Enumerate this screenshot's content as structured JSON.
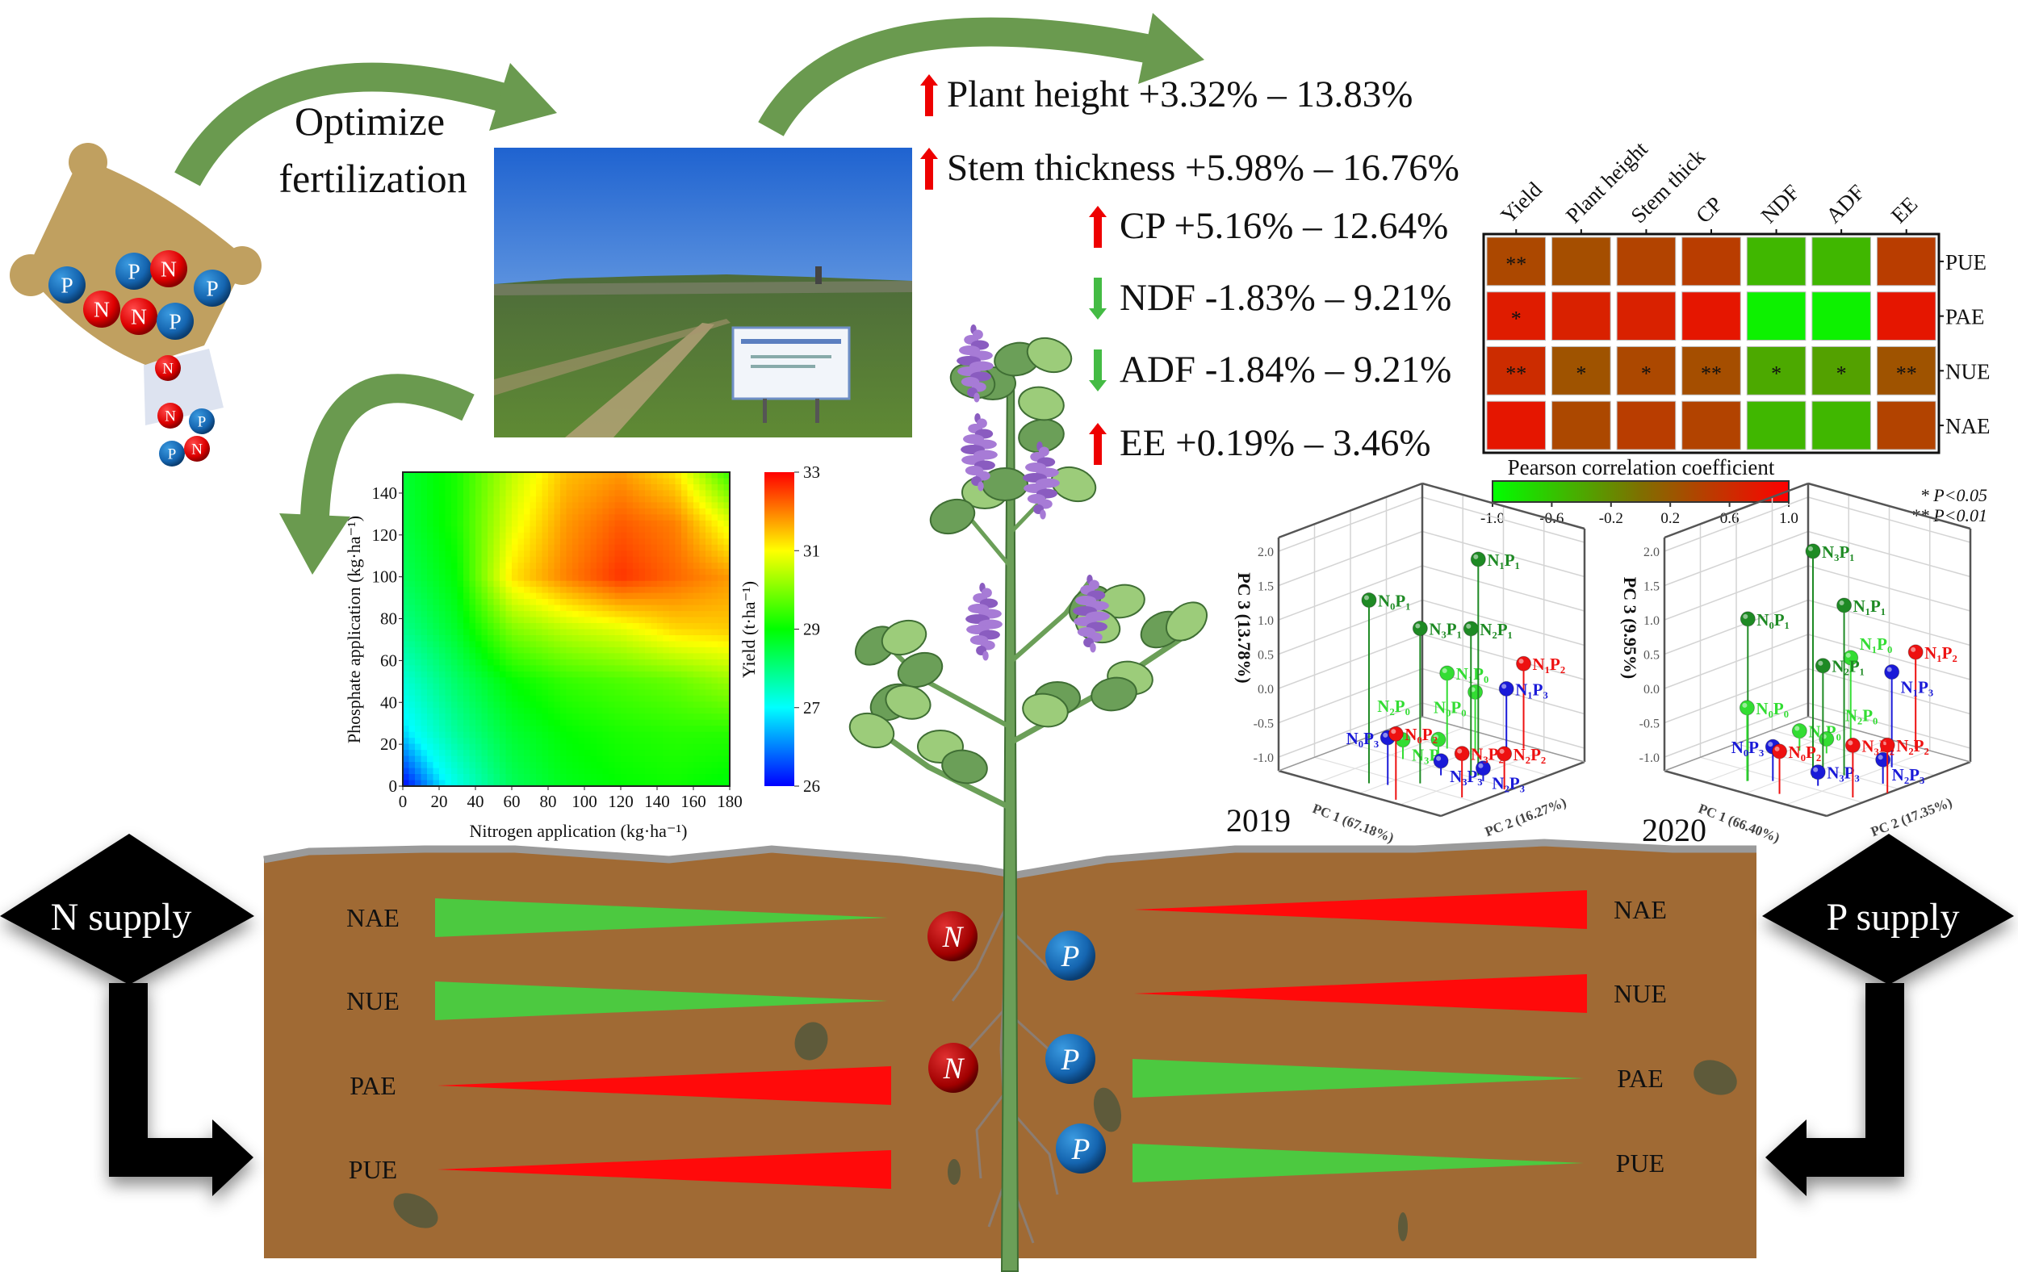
{
  "fertilizer": {
    "title_line1": "Optimize",
    "title_line2": "fertilization",
    "bag_balls": [
      "P",
      "P",
      "N",
      "P",
      "N",
      "N",
      "P"
    ],
    "falling_balls": [
      "N",
      "N",
      "P",
      "P",
      "N"
    ]
  },
  "effects": [
    {
      "trend": "up",
      "label": "Plant height +3.32% – 13.83%"
    },
    {
      "trend": "up",
      "label": "Stem thickness +5.98% – 16.76%"
    },
    {
      "trend": "up",
      "label": "CP +5.16% – 12.64%"
    },
    {
      "trend": "down",
      "label": "NDF -1.83% – 9.21%"
    },
    {
      "trend": "down",
      "label": "ADF -1.84% – 9.21%"
    },
    {
      "trend": "up",
      "label": "EE +0.19% – 3.46%"
    }
  ],
  "colors": {
    "up": "#ee0000",
    "down": "#44bb44",
    "increase_wedge": "#ff0a0a",
    "decrease_wedge": "#4cc940",
    "soil": "#a06a34",
    "arrow_green": "#6a9a4f"
  },
  "soil": {
    "n_supply_label": "N supply",
    "p_supply_label": "P supply",
    "root_balls": [
      "N",
      "P",
      "N",
      "P",
      "P"
    ],
    "n_side": [
      {
        "label": "NAE",
        "trend": "decrease"
      },
      {
        "label": "NUE",
        "trend": "decrease"
      },
      {
        "label": "PAE",
        "trend": "increase"
      },
      {
        "label": "PUE",
        "trend": "increase"
      }
    ],
    "p_side": [
      {
        "label": "NAE",
        "trend": "increase"
      },
      {
        "label": "NUE",
        "trend": "increase"
      },
      {
        "label": "PAE",
        "trend": "decrease"
      },
      {
        "label": "PUE",
        "trend": "decrease"
      }
    ]
  },
  "chart_data": [
    {
      "type": "heatmap",
      "subtype": "contour",
      "xlabel": "Nitrogen application (kg·ha⁻¹)",
      "ylabel": "Phosphate application (kg·ha⁻¹)",
      "colorbar_label": "Yield (t·ha⁻¹)",
      "xlim": [
        0,
        180
      ],
      "ylim": [
        0,
        150
      ],
      "xticks": [
        "0",
        "20",
        "40",
        "60",
        "80",
        "100",
        "120",
        "140",
        "160",
        "180"
      ],
      "yticks": [
        "0",
        "20",
        "40",
        "60",
        "80",
        "100",
        "120",
        "140"
      ],
      "colorbar_ticks": [
        "26",
        "27",
        "29",
        "31",
        "33"
      ],
      "x": [
        0,
        30,
        60,
        90,
        120,
        150,
        180
      ],
      "y": [
        0,
        25,
        50,
        75,
        100,
        125,
        150
      ],
      "z": [
        [
          26.0,
          27.2,
          28.3,
          28.8,
          29.0,
          29.1,
          28.9
        ],
        [
          26.8,
          27.8,
          28.6,
          29.0,
          29.2,
          29.3,
          29.3
        ],
        [
          27.3,
          28.2,
          29.0,
          29.4,
          29.6,
          29.8,
          30.2
        ],
        [
          27.9,
          28.7,
          30.0,
          30.5,
          30.8,
          31.3,
          31.4
        ],
        [
          28.3,
          29.0,
          31.2,
          32.0,
          32.6,
          32.2,
          31.8
        ],
        [
          28.5,
          29.2,
          30.8,
          31.8,
          32.3,
          32.0,
          30.8
        ],
        [
          28.6,
          29.2,
          30.5,
          31.5,
          31.8,
          31.2,
          29.4
        ]
      ]
    },
    {
      "type": "heatmap",
      "subtype": "correlation",
      "title": "Pearson correlation coefficient",
      "columns": [
        "Yield",
        "Plant height",
        "Stem thick",
        "CP",
        "NDF",
        "ADF",
        "EE"
      ],
      "rows": [
        "PUE",
        "PAE",
        "NUE",
        "NAE"
      ],
      "values": [
        [
          0.35,
          0.3,
          0.4,
          0.45,
          -0.5,
          -0.5,
          0.45
        ],
        [
          0.75,
          0.7,
          0.7,
          0.8,
          -0.9,
          -0.9,
          0.8
        ],
        [
          0.6,
          0.25,
          0.35,
          0.3,
          -0.4,
          -0.35,
          0.25
        ],
        [
          0.8,
          0.35,
          0.45,
          0.4,
          -0.5,
          -0.5,
          0.4
        ]
      ],
      "significance": [
        [
          "**",
          "",
          "",
          "",
          "",
          "",
          ""
        ],
        [
          "*",
          "",
          "",
          "",
          "",
          "",
          ""
        ],
        [
          "**",
          "*",
          "*",
          "**",
          "*",
          "*",
          "**"
        ],
        [
          "",
          "",
          "",
          "",
          "",
          "",
          ""
        ]
      ],
      "colorbar_ticks": [
        "-1.0",
        "-0.6",
        "-0.2",
        "0.2",
        "0.6",
        "1.0"
      ],
      "colorbar_range": [
        -1,
        1
      ],
      "legend": [
        "* P<0.05",
        "** P<0.01"
      ]
    },
    {
      "type": "scatter",
      "subtype": "3d-pca",
      "year_label": "2019",
      "xlabel": "PC 1 (67.18%)",
      "ylabel": "PC 2 (16.27%)",
      "zlabel": "PC 3 (13.78%)",
      "zticks": [
        "2.0",
        "1.5",
        "1.0",
        "0.5",
        "0.0",
        "-0.5",
        "-1.0"
      ],
      "zlim": [
        -1.2,
        2.2
      ],
      "group_colors": {
        "P0": "#33dd33",
        "P1": "#1e8a24",
        "P2": "#ee1111",
        "P3": "#1a1ad8"
      },
      "points": [
        {
          "label": "N₁P₁",
          "group": "P1",
          "pc1": 1.0,
          "pc2": -0.17,
          "pc3": 1.95
        },
        {
          "label": "N₀P₁",
          "group": "P1",
          "pc1": -0.25,
          "pc2": 1.46,
          "pc3": 1.47
        },
        {
          "label": "N₃P₁",
          "group": "P1",
          "pc1": 0.48,
          "pc2": 0.86,
          "pc3": 1.06
        },
        {
          "label": "N₂P₁",
          "group": "P1",
          "pc1": 0.9,
          "pc2": -0.08,
          "pc3": 0.94
        },
        {
          "label": "N₁P₀",
          "group": "P0",
          "pc1": -0.45,
          "pc2": -0.94,
          "pc3": -0.1
        },
        {
          "label": "N₀P₀",
          "group": "P0",
          "pc1": 0.04,
          "pc2": -1.17,
          "pc3": -0.34
        },
        {
          "label": "N₁P₂",
          "group": "P2",
          "pc1": 0.64,
          "pc2": -1.84,
          "pc3": 0.04
        },
        {
          "label": "N₁P₃",
          "group": "P3",
          "pc1": 0.8,
          "pc2": -1.18,
          "pc3": -0.17
        },
        {
          "label": "N₀P₂",
          "group": "P2",
          "pc1": 0.75,
          "pc2": 1.84,
          "pc3": -0.24
        },
        {
          "label": "N₀P₃",
          "group": "P3",
          "pc1": 0.08,
          "pc2": 1.31,
          "pc3": -0.51
        },
        {
          "label": "N₃P₀",
          "group": "P0",
          "pc1": -0.68,
          "pc2": 0.03,
          "pc3": -0.92
        },
        {
          "label": "N₂P₀",
          "group": "P0",
          "pc1": -0.4,
          "pc2": -0.64,
          "pc3": -1.0
        },
        {
          "label": "N₃P₃",
          "group": "P3",
          "pc1": 0.47,
          "pc2": 0.27,
          "pc3": -0.99
        },
        {
          "label": "N₃P₂",
          "group": "P2",
          "pc1": 1.6,
          "pc2": 0.96,
          "pc3": -0.56
        },
        {
          "label": "N₂P₂",
          "group": "P2",
          "pc1": 1.9,
          "pc2": 0.12,
          "pc3": -0.68
        },
        {
          "label": "N₂P₃",
          "group": "P3",
          "pc1": 1.29,
          "pc2": 0.02,
          "pc3": -1.01
        }
      ]
    },
    {
      "type": "scatter",
      "subtype": "3d-pca",
      "year_label": "2020",
      "xlabel": "PC 1 (66.40%)",
      "ylabel": "PC 2 (17.35%)",
      "zlabel": "PC 3 (9.95%)",
      "zticks": [
        "2.0",
        "1.5",
        "1.0",
        "0.5",
        "0.0",
        "-0.5",
        "-1.0"
      ],
      "zlim": [
        -1.2,
        2.2
      ],
      "group_colors": {
        "P0": "#33dd33",
        "P1": "#1e8a24",
        "P2": "#ee1111",
        "P3": "#1a1ad8"
      },
      "points": [
        {
          "label": "N₃P₁",
          "group": "P1",
          "pc1": 0.36,
          "pc2": 0.53,
          "pc3": 2.1
        },
        {
          "label": "N₁P₁",
          "group": "P1",
          "pc1": 0.72,
          "pc2": 0.07,
          "pc3": 1.28
        },
        {
          "label": "N₀P₁",
          "group": "P1",
          "pc1": -0.44,
          "pc2": 1.44,
          "pc3": 1.16
        },
        {
          "label": "N₂P₁",
          "group": "P1",
          "pc1": 0.42,
          "pc2": 0.32,
          "pc3": 0.4
        },
        {
          "label": "N₁P₀",
          "group": "P0",
          "pc1": -0.57,
          "pc2": -1.57,
          "pc3": -0.02
        },
        {
          "label": "N₀P₀",
          "group": "P0",
          "pc1": -0.44,
          "pc2": 1.46,
          "pc3": -0.13
        },
        {
          "label": "N₁P₂",
          "group": "P2",
          "pc1": 0.73,
          "pc2": -1.91,
          "pc3": 0.21
        },
        {
          "label": "N₁P₃",
          "group": "P3",
          "pc1": 1.09,
          "pc2": -0.84,
          "pc3": 0.19
        },
        {
          "label": "N₃P₀",
          "group": "P0",
          "pc1": -0.84,
          "pc2": -0.45,
          "pc3": -0.91
        },
        {
          "label": "N₂P₀",
          "group": "P0",
          "pc1": -0.36,
          "pc2": -0.66,
          "pc3": -0.99
        },
        {
          "label": "N₀P₃",
          "group": "P3",
          "pc1": -0.08,
          "pc2": 1.15,
          "pc3": -0.7
        },
        {
          "label": "N₀P₂",
          "group": "P2",
          "pc1": 0.5,
          "pc2": 1.62,
          "pc3": -0.58
        },
        {
          "label": "N₃P₃",
          "group": "P3",
          "pc1": 0.74,
          "pc2": 0.82,
          "pc3": -1.0
        },
        {
          "label": "N₃P₂",
          "group": "P2",
          "pc1": 1.67,
          "pc2": 0.9,
          "pc3": -0.44
        },
        {
          "label": "N₂P₂",
          "group": "P2",
          "pc1": 2.0,
          "pc2": 0.31,
          "pc3": -0.5
        },
        {
          "label": "N₂P₃",
          "group": "P3",
          "pc1": 1.58,
          "pc2": -0.04,
          "pc3": -0.85
        }
      ]
    }
  ]
}
